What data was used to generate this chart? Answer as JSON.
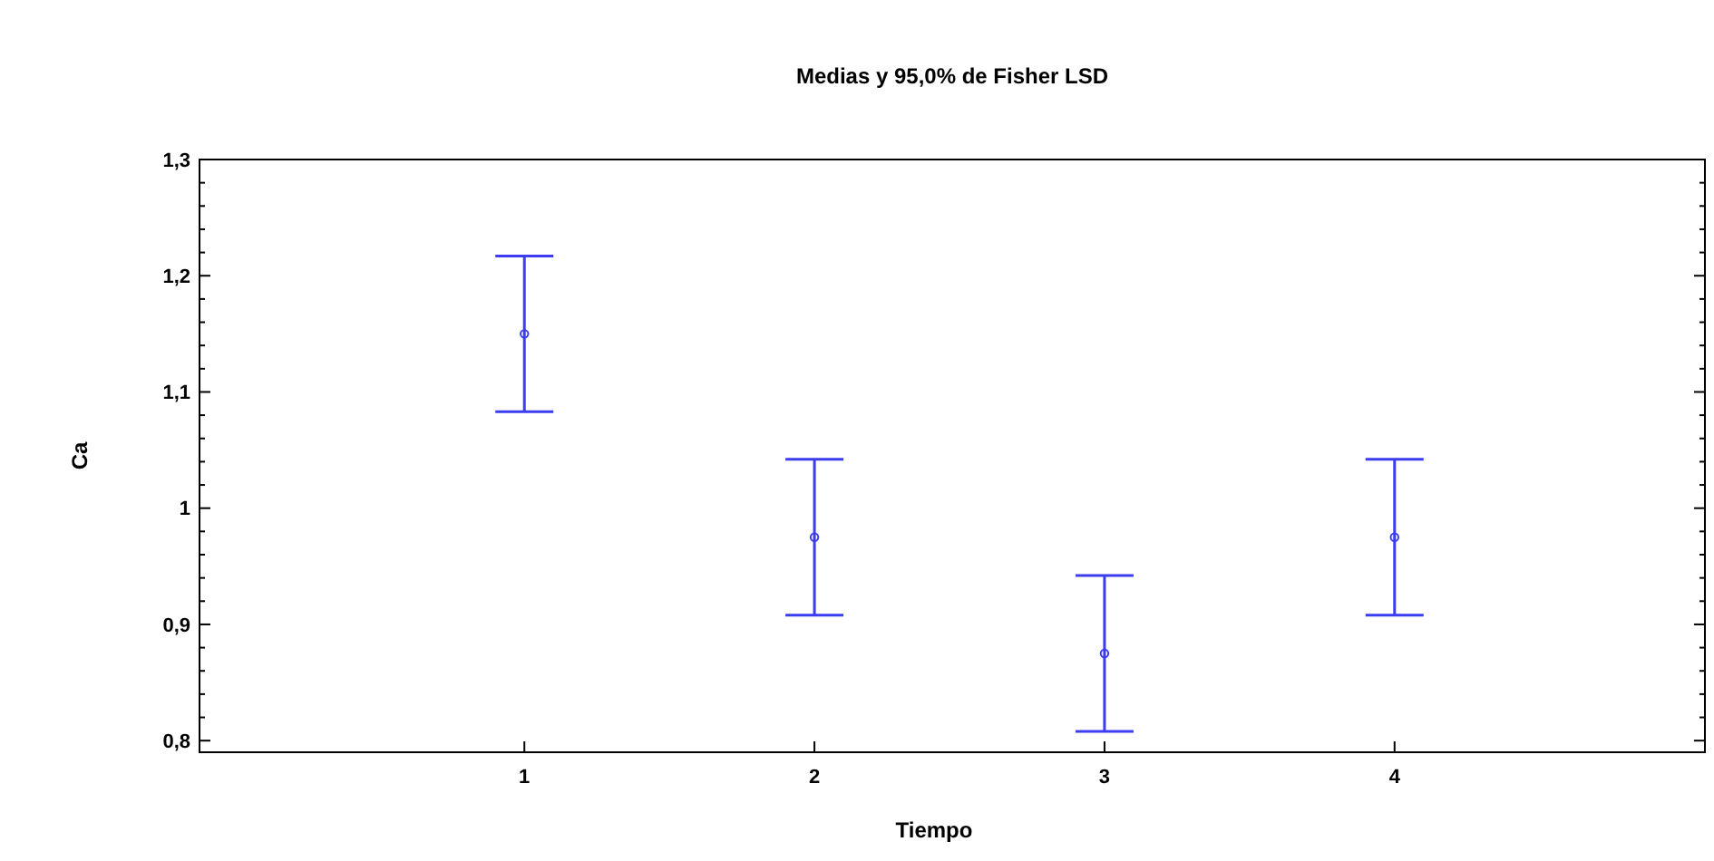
{
  "chart_data": {
    "type": "scatter",
    "title": "Medias y 95,0% de Fisher LSD",
    "xlabel": "Tiempo",
    "ylabel": "Ca",
    "x": [
      1,
      2,
      3,
      4
    ],
    "series": [
      {
        "color": "#3c3cf0",
        "values": [
          1.15,
          0.975,
          0.875,
          0.975
        ],
        "errors": [
          0.067,
          0.067,
          0.067,
          0.067
        ]
      }
    ],
    "xlim": [
      -0.12,
      5.07
    ],
    "xticks": [
      1,
      2,
      3,
      4
    ],
    "ylim": [
      0.79,
      1.3
    ],
    "yticks": [
      {
        "value": 0.8,
        "label": "0,8"
      },
      {
        "value": 0.82,
        "label": null
      },
      {
        "value": 0.84,
        "label": null
      },
      {
        "value": 0.86,
        "label": null
      },
      {
        "value": 0.88,
        "label": null
      },
      {
        "value": 0.9,
        "label": "0,9"
      },
      {
        "value": 0.92,
        "label": null
      },
      {
        "value": 0.94,
        "label": null
      },
      {
        "value": 0.96,
        "label": null
      },
      {
        "value": 0.98,
        "label": null
      },
      {
        "value": 1,
        "label": "1"
      },
      {
        "value": 1.02,
        "label": null
      },
      {
        "value": 1.04,
        "label": null
      },
      {
        "value": 1.06,
        "label": null
      },
      {
        "value": 1.08,
        "label": null
      },
      {
        "value": 1.1,
        "label": "1,1"
      },
      {
        "value": 1.12,
        "label": null
      },
      {
        "value": 1.14,
        "label": null
      },
      {
        "value": 1.16,
        "label": null
      },
      {
        "value": 1.18,
        "label": null
      },
      {
        "value": 1.2,
        "label": "1,2"
      },
      {
        "value": 1.22,
        "label": null
      },
      {
        "value": 1.24,
        "label": null
      },
      {
        "value": 1.26,
        "label": null
      },
      {
        "value": 1.28,
        "label": null
      },
      {
        "value": 1.3,
        "label": "1,3"
      }
    ],
    "marker": "circle",
    "grid": false
  }
}
